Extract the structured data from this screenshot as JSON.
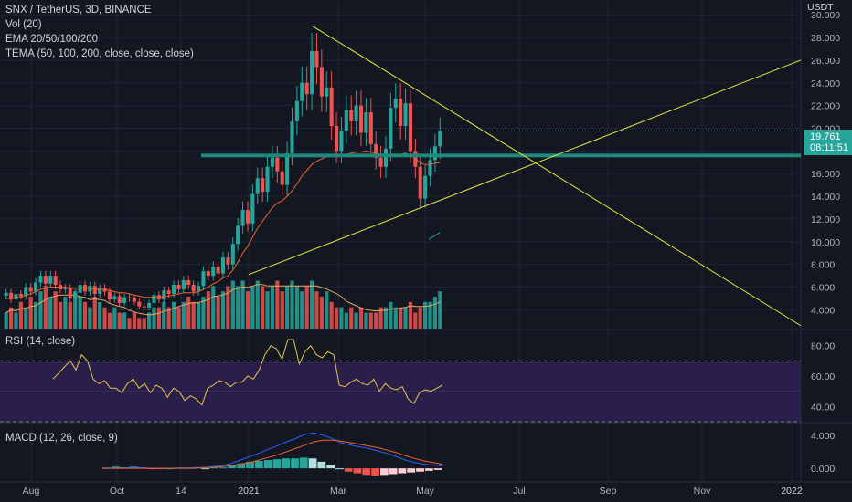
{
  "legend": {
    "symbol": "SNX / TetherUS, 3D, BINANCE",
    "vol": "Vol (20)",
    "ema": "EMA 20/50/100/200",
    "tema": "TEMA (50, 100, 200, close, close, close)"
  },
  "quote_currency": "USDT",
  "last_price": {
    "value": 19.761,
    "label": "19.761",
    "countdown": "08:11:51"
  },
  "colors": {
    "background": "#131722",
    "up": "#26a69a",
    "down": "#ef5350",
    "trendline": "#e6e63c",
    "support": "#1d8a7e",
    "ema": "#f0622d",
    "rsi_line": "#e6c44c",
    "rsi_band": "#2a1f4a",
    "macd_line": "#2962ff",
    "macd_signal": "#f0622d"
  },
  "chart_data": [
    {
      "type": "candlestick",
      "title": "SNX / TetherUS, 3D, BINANCE",
      "ylim": [
        2.5,
        30.5
      ],
      "y_ticks": [
        "30.000",
        "28.000",
        "26.000",
        "24.000",
        "22.000",
        "20.000",
        "18.000",
        "16.000",
        "14.000",
        "12.000",
        "10.000",
        "8.000",
        "6.000",
        "4.000"
      ],
      "x_ticks": [
        "Aug",
        "Oct",
        "14",
        "2021",
        "Mar",
        "May",
        "Jul",
        "Sep",
        "Nov",
        "2022"
      ],
      "candles_close": [
        5.5,
        4.9,
        5.4,
        5.2,
        6.0,
        5.6,
        6.4,
        7.0,
        6.3,
        7.0,
        6.2,
        5.8,
        5.9,
        5.0,
        5.5,
        6.2,
        5.6,
        6.1,
        5.4,
        5.9,
        5.6,
        4.9,
        5.2,
        4.6,
        5.1,
        5.0,
        4.7,
        4.3,
        4.2,
        4.6,
        5.3,
        4.9,
        5.7,
        5.4,
        6.2,
        5.8,
        6.6,
        6.2,
        5.6,
        6.1,
        7.4,
        7.0,
        7.8,
        7.2,
        8.6,
        8.0,
        9.8,
        11.4,
        12.8,
        11.6,
        14.2,
        15.6,
        14.4,
        16.6,
        17.4,
        16.2,
        15.0,
        17.8,
        20.6,
        22.4,
        24.0,
        23.0,
        26.8,
        25.4,
        22.8,
        23.6,
        20.2,
        18.0,
        19.8,
        21.6,
        20.6,
        22.0,
        19.6,
        21.4,
        18.6,
        17.4,
        16.6,
        18.2,
        21.8,
        22.6,
        20.2,
        22.2,
        18.0,
        16.6,
        13.8,
        15.8,
        17.2,
        18.4,
        19.761
      ],
      "support_level": 17.6,
      "trendlines": [
        {
          "from": [
            "2021-02-15",
            29.0
          ],
          "to": [
            "2022-01-10",
            2.5
          ]
        },
        {
          "from": [
            "2020-12-28",
            7.2
          ],
          "to": [
            "2022-01-20",
            26.0
          ]
        }
      ],
      "ema_values": [
        5.0,
        5.0,
        5.1,
        5.1,
        5.3,
        5.4,
        5.6,
        5.8,
        5.9,
        6.0,
        6.0,
        6.0,
        6.0,
        5.9,
        5.9,
        5.9,
        5.9,
        5.9,
        5.8,
        5.8,
        5.8,
        5.7,
        5.6,
        5.5,
        5.5,
        5.4,
        5.3,
        5.2,
        5.1,
        5.1,
        5.1,
        5.1,
        5.2,
        5.2,
        5.3,
        5.4,
        5.5,
        5.5,
        5.5,
        5.6,
        5.8,
        6.0,
        6.3,
        6.5,
        6.8,
        7.0,
        7.5,
        8.2,
        9.0,
        9.6,
        10.4,
        11.2,
        11.8,
        12.4,
        13.0,
        13.4,
        13.6,
        14.0,
        14.5,
        15.1,
        15.8,
        16.3,
        16.8,
        17.1,
        17.3,
        17.5,
        17.5,
        17.5,
        17.6,
        17.7,
        17.8,
        17.9,
        17.9,
        18.0,
        17.9,
        17.8,
        17.7,
        17.6,
        17.6,
        17.7,
        17.7,
        17.8,
        17.6,
        17.4,
        16.9,
        16.8,
        16.8,
        16.9,
        17.0
      ]
    },
    {
      "type": "bar",
      "title": "Vol (20)",
      "values": [
        3,
        4,
        3,
        5,
        4,
        6,
        5,
        7,
        8,
        6,
        7,
        5,
        6,
        5,
        7,
        6,
        5,
        4,
        6,
        5,
        4,
        3,
        4,
        3,
        3,
        2,
        3,
        2,
        2,
        3,
        4,
        4,
        5,
        4,
        5,
        4,
        5,
        6,
        5,
        5,
        6,
        7,
        8,
        6,
        7,
        8,
        9,
        8,
        9,
        7,
        8,
        9,
        8,
        7,
        8,
        9,
        7,
        8,
        9,
        8,
        7,
        8,
        9,
        7,
        6,
        7,
        5,
        4,
        4,
        3,
        4,
        3,
        4,
        3,
        3,
        3,
        4,
        4,
        5,
        4,
        4,
        4,
        5,
        3,
        4,
        5,
        5,
        6,
        7
      ]
    },
    {
      "type": "line",
      "title": "RSI (14, close)",
      "ylim": [
        30,
        90
      ],
      "y_ticks": [
        "80.00",
        "60.00",
        "40.00"
      ],
      "values": [
        58,
        62,
        66,
        70,
        64,
        74,
        70,
        58,
        55,
        57,
        52,
        52,
        49,
        55,
        58,
        52,
        55,
        49,
        54,
        52,
        46,
        52,
        50,
        44,
        47,
        45,
        41,
        52,
        54,
        57,
        56,
        53,
        56,
        56,
        60,
        58,
        64,
        74,
        80,
        78,
        71,
        84,
        84,
        68,
        76,
        80,
        74,
        72,
        76,
        74,
        54,
        53,
        56,
        58,
        55,
        54,
        58,
        50,
        55,
        52,
        51,
        53,
        45,
        42,
        49,
        51,
        50,
        52,
        54
      ],
      "band": [
        30,
        70
      ]
    },
    {
      "type": "line",
      "title": "MACD (12, 26, close, 9)",
      "y_ticks": [
        "4.000",
        "0.000"
      ],
      "series": [
        {
          "values": [
            0.0,
            0.0,
            0.0,
            0.1,
            0.1,
            0.0,
            0.0,
            0.0,
            0.0,
            0.0,
            0.1,
            0.1,
            0.2,
            0.3,
            0.6,
            1.0,
            1.4,
            1.8,
            2.3,
            2.7,
            3.2,
            3.6,
            4.1,
            4.3,
            4.0,
            3.6,
            3.1,
            2.8,
            2.6,
            2.4,
            2.1,
            1.8,
            1.4,
            1.0,
            0.7,
            0.5,
            0.4,
            0.3
          ]
        },
        {
          "values": [
            0.0,
            0.0,
            0.0,
            0.0,
            0.0,
            0.0,
            0.0,
            0.0,
            0.0,
            0.0,
            0.0,
            0.1,
            0.1,
            0.2,
            0.3,
            0.5,
            0.7,
            1.0,
            1.3,
            1.6,
            2.0,
            2.4,
            2.8,
            3.2,
            3.4,
            3.4,
            3.3,
            3.1,
            2.9,
            2.7,
            2.5,
            2.2,
            1.9,
            1.5,
            1.2,
            0.9,
            0.7,
            0.5
          ]
        }
      ],
      "histogram": [
        0.1,
        0.2,
        0.1,
        0.2,
        0.1,
        -0.1,
        -0.1,
        0.0,
        0.1,
        0.1,
        0.1,
        0.0,
        0.1,
        0.1,
        0.4,
        0.6,
        0.8,
        0.9,
        1.0,
        1.1,
        1.2,
        1.2,
        1.3,
        1.2,
        0.8,
        0.4,
        0.0,
        -0.4,
        -0.6,
        -0.8,
        -0.9,
        -0.8,
        -0.7,
        -0.6,
        -0.5,
        -0.4,
        -0.3,
        -0.2
      ]
    }
  ]
}
